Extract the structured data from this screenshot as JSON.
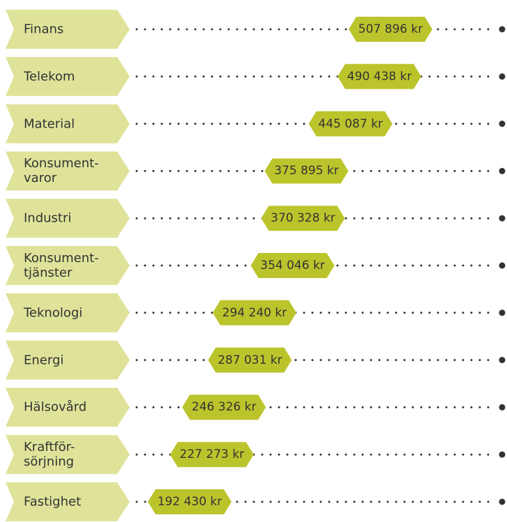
{
  "chart_data": {
    "type": "dot",
    "categories": [
      "Finans",
      "Telekom",
      "Material",
      "Konsument-\nvaror",
      "Industri",
      "Konsument-\ntjänster",
      "Teknologi",
      "Energi",
      "Hälsovård",
      "Kraftför-\nsörjning",
      "Fastighet"
    ],
    "values": [
      507896,
      490438,
      445087,
      375895,
      370328,
      354046,
      294240,
      287031,
      246326,
      227273,
      192430
    ],
    "value_labels": [
      "507 896 kr",
      "490 438 kr",
      "445 087 kr",
      "375 895 kr",
      "370 328 kr",
      "354 046 kr",
      "294 240 kr",
      "287 031 kr",
      "246 326 kr",
      "227 273 kr",
      "192 430 kr"
    ],
    "label_color": "#dfe39a",
    "color": "#bcc42c"
  }
}
